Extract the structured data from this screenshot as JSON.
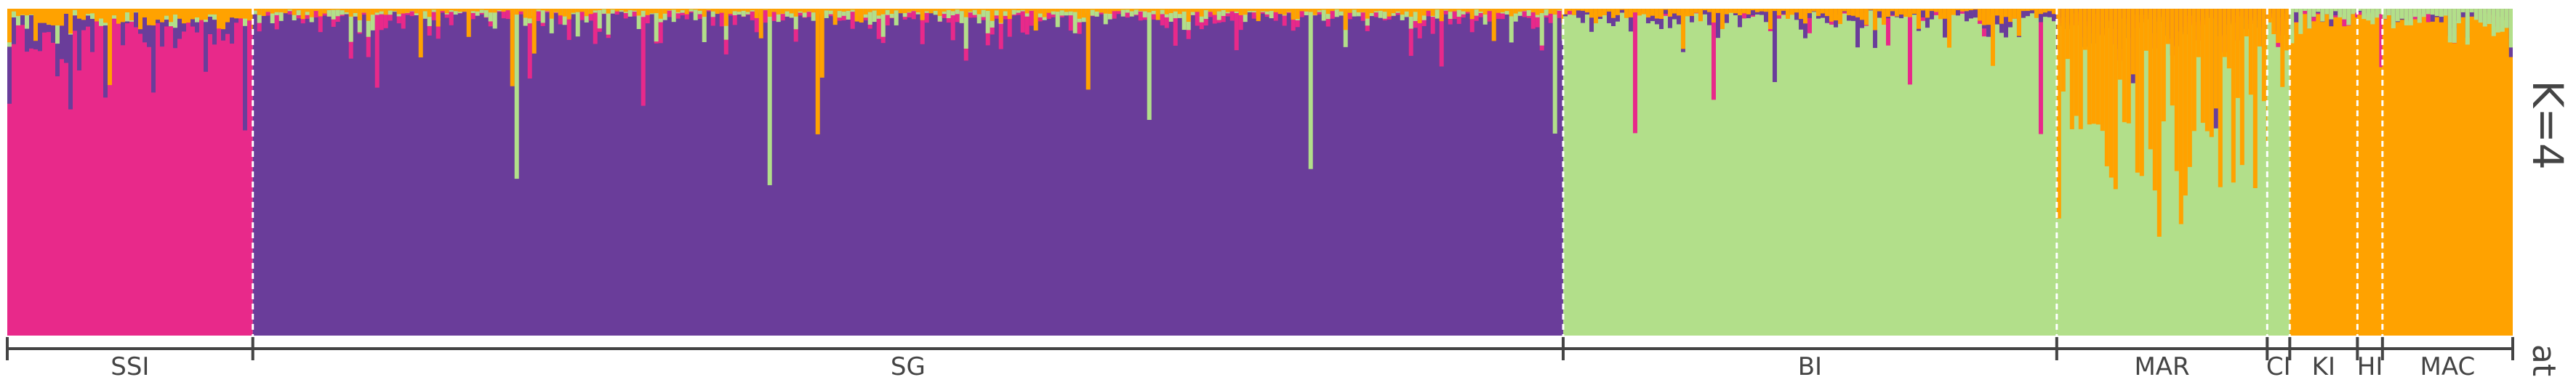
{
  "chart_data": {
    "type": "bar",
    "stacked": true,
    "normalized": true,
    "ylim": [
      0,
      1
    ],
    "k_label": "K=4",
    "margin_label": "at",
    "clusters": [
      {
        "id": "magenta",
        "color": "#e8298a"
      },
      {
        "id": "purple",
        "color": "#6a3d9a"
      },
      {
        "id": "green",
        "color": "#b2df8a"
      },
      {
        "id": "orange",
        "color": "#ffa200"
      }
    ],
    "populations": [
      {
        "label": "SSI",
        "start": 0,
        "end": 0.098,
        "q": [
          0.84,
          0.1,
          0.03,
          0.03
        ]
      },
      {
        "label": "SG",
        "start": 0.098,
        "end": 0.621,
        "q": [
          0.03,
          0.94,
          0.02,
          0.01
        ]
      },
      {
        "label": "BI",
        "start": 0.621,
        "end": 0.818,
        "q": [
          0.02,
          0.03,
          0.93,
          0.02
        ]
      },
      {
        "label": "MAR",
        "start": 0.818,
        "end": 0.902,
        "q": [
          0.05,
          0.05,
          0.55,
          0.35
        ]
      },
      {
        "label": "CI",
        "start": 0.902,
        "end": 0.911,
        "q": [
          0.03,
          0.02,
          0.85,
          0.1
        ]
      },
      {
        "label": "KI",
        "start": 0.911,
        "end": 0.938,
        "q": [
          0.02,
          0.02,
          0.03,
          0.93
        ]
      },
      {
        "label": "HI",
        "start": 0.938,
        "end": 0.948,
        "q": [
          0.02,
          0.02,
          0.03,
          0.93
        ]
      },
      {
        "label": "MAC",
        "start": 0.948,
        "end": 1.0,
        "q": [
          0.03,
          0.03,
          0.04,
          0.9
        ]
      }
    ]
  }
}
